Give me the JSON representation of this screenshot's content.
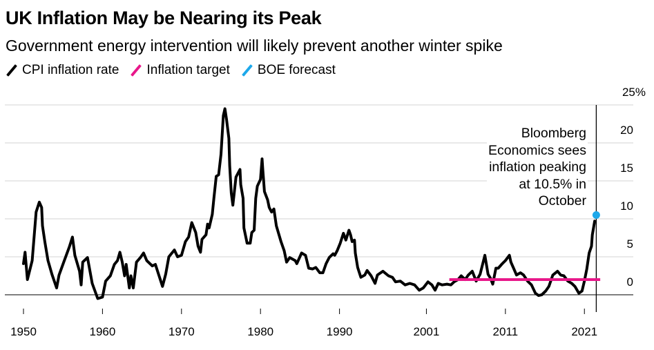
{
  "chart_data": {
    "type": "line",
    "title": "UK Inflation May be Nearing its Peak",
    "subtitle": "Government energy intervention will likely prevent another winter spike",
    "xlabel": "",
    "ylabel": "",
    "xlim": [
      1950,
      2023
    ],
    "ylim": [
      -2,
      25
    ],
    "grid": true,
    "legend_position": "top-left",
    "legend": [
      {
        "name": "CPI inflation rate",
        "color": "#000000"
      },
      {
        "name": "Inflation target",
        "color": "#e8178a"
      },
      {
        "name": "BOE forecast",
        "color": "#1da8ea"
      }
    ],
    "x_ticks": [
      {
        "value": 1950,
        "label": "1950"
      },
      {
        "value": 1960,
        "label": "1960"
      },
      {
        "value": 1970,
        "label": "1970"
      },
      {
        "value": 1980,
        "label": "1980"
      },
      {
        "value": 1990,
        "label": "1990"
      },
      {
        "value": 2001,
        "label": "2001"
      },
      {
        "value": 2011,
        "label": "2011"
      },
      {
        "value": 2021,
        "label": "2021"
      }
    ],
    "y_ticks": [
      {
        "value": 25,
        "label": "25%"
      },
      {
        "value": 20,
        "label": "20"
      },
      {
        "value": 15,
        "label": "15"
      },
      {
        "value": 10,
        "label": "10"
      },
      {
        "value": 5,
        "label": "5"
      },
      {
        "value": 0,
        "label": "0"
      }
    ],
    "series": [
      {
        "name": "CPI inflation rate",
        "color": "#000000",
        "points": [
          [
            1950.0,
            4.1
          ],
          [
            1950.2,
            5.6
          ],
          [
            1950.5,
            2.0
          ],
          [
            1951.1,
            4.5
          ],
          [
            1951.6,
            10.9
          ],
          [
            1952.0,
            12.2
          ],
          [
            1952.3,
            11.5
          ],
          [
            1952.4,
            9.1
          ],
          [
            1952.7,
            7.0
          ],
          [
            1953.1,
            4.5
          ],
          [
            1953.6,
            2.7
          ],
          [
            1954.2,
            0.9
          ],
          [
            1954.5,
            2.6
          ],
          [
            1955.1,
            4.3
          ],
          [
            1955.8,
            6.3
          ],
          [
            1956.2,
            7.6
          ],
          [
            1956.5,
            5.2
          ],
          [
            1957.1,
            3.1
          ],
          [
            1957.3,
            1.3
          ],
          [
            1957.5,
            4.3
          ],
          [
            1958.1,
            4.9
          ],
          [
            1958.7,
            1.5
          ],
          [
            1959.4,
            -0.5
          ],
          [
            1960.0,
            -0.3
          ],
          [
            1960.4,
            1.8
          ],
          [
            1961.0,
            2.5
          ],
          [
            1961.5,
            4.0
          ],
          [
            1961.9,
            4.5
          ],
          [
            1962.2,
            5.6
          ],
          [
            1962.5,
            4.3
          ],
          [
            1962.8,
            2.5
          ],
          [
            1963.0,
            4.0
          ],
          [
            1963.4,
            0.9
          ],
          [
            1963.6,
            2.5
          ],
          [
            1963.9,
            0.9
          ],
          [
            1964.3,
            4.3
          ],
          [
            1964.8,
            4.9
          ],
          [
            1965.2,
            5.5
          ],
          [
            1965.6,
            4.5
          ],
          [
            1966.3,
            3.8
          ],
          [
            1966.7,
            4.0
          ],
          [
            1967.1,
            2.7
          ],
          [
            1967.6,
            1.1
          ],
          [
            1968.0,
            2.7
          ],
          [
            1968.4,
            5.0
          ],
          [
            1969.1,
            5.9
          ],
          [
            1969.5,
            5.0
          ],
          [
            1970.0,
            5.2
          ],
          [
            1970.5,
            7.0
          ],
          [
            1970.9,
            7.6
          ],
          [
            1971.3,
            9.5
          ],
          [
            1971.8,
            8.2
          ],
          [
            1972.1,
            6.4
          ],
          [
            1972.4,
            5.6
          ],
          [
            1972.6,
            7.3
          ],
          [
            1973.1,
            7.9
          ],
          [
            1973.3,
            9.3
          ],
          [
            1973.5,
            8.8
          ],
          [
            1973.9,
            10.6
          ],
          [
            1974.1,
            12.7
          ],
          [
            1974.4,
            15.6
          ],
          [
            1974.7,
            15.8
          ],
          [
            1975.0,
            18.5
          ],
          [
            1975.3,
            23.6
          ],
          [
            1975.5,
            24.5
          ],
          [
            1975.7,
            23.1
          ],
          [
            1976.0,
            20.6
          ],
          [
            1976.1,
            17.0
          ],
          [
            1976.3,
            13.4
          ],
          [
            1976.5,
            11.8
          ],
          [
            1976.7,
            13.6
          ],
          [
            1976.9,
            15.5
          ],
          [
            1977.4,
            16.5
          ],
          [
            1977.5,
            14.5
          ],
          [
            1977.8,
            12.7
          ],
          [
            1977.9,
            8.8
          ],
          [
            1978.3,
            6.8
          ],
          [
            1978.7,
            6.8
          ],
          [
            1978.9,
            8.2
          ],
          [
            1979.2,
            8.5
          ],
          [
            1979.4,
            12.7
          ],
          [
            1979.6,
            14.3
          ],
          [
            1980.0,
            15.2
          ],
          [
            1980.2,
            17.9
          ],
          [
            1980.3,
            16.4
          ],
          [
            1980.5,
            13.6
          ],
          [
            1980.9,
            12.5
          ],
          [
            1981.1,
            11.5
          ],
          [
            1981.4,
            10.9
          ],
          [
            1981.7,
            11.3
          ],
          [
            1982.0,
            9.1
          ],
          [
            1982.6,
            7.0
          ],
          [
            1983.0,
            5.8
          ],
          [
            1983.3,
            4.3
          ],
          [
            1983.7,
            4.9
          ],
          [
            1984.4,
            4.5
          ],
          [
            1984.6,
            4.1
          ],
          [
            1985.2,
            5.5
          ],
          [
            1985.7,
            5.2
          ],
          [
            1986.1,
            3.5
          ],
          [
            1986.6,
            3.4
          ],
          [
            1987.0,
            3.6
          ],
          [
            1987.5,
            2.9
          ],
          [
            1987.9,
            2.9
          ],
          [
            1988.3,
            4.1
          ],
          [
            1988.7,
            4.9
          ],
          [
            1989.2,
            5.4
          ],
          [
            1989.4,
            5.2
          ],
          [
            1989.7,
            5.8
          ],
          [
            1990.1,
            6.8
          ],
          [
            1990.5,
            8.1
          ],
          [
            1990.8,
            7.2
          ],
          [
            1991.2,
            8.5
          ],
          [
            1991.4,
            7.9
          ],
          [
            1991.6,
            7.0
          ],
          [
            1991.9,
            7.2
          ],
          [
            1992.0,
            5.5
          ],
          [
            1992.3,
            3.6
          ],
          [
            1992.7,
            2.3
          ],
          [
            1993.2,
            2.6
          ],
          [
            1993.5,
            3.2
          ],
          [
            1994.0,
            2.5
          ],
          [
            1994.5,
            1.5
          ],
          [
            1994.8,
            2.6
          ],
          [
            1995.5,
            3.1
          ],
          [
            1996.2,
            2.5
          ],
          [
            1996.7,
            2.3
          ],
          [
            1997.1,
            1.7
          ],
          [
            1997.7,
            1.8
          ],
          [
            1998.3,
            1.3
          ],
          [
            1998.9,
            1.5
          ],
          [
            1999.5,
            1.3
          ],
          [
            2000.1,
            0.6
          ],
          [
            2000.6,
            0.9
          ],
          [
            2001.2,
            1.7
          ],
          [
            2001.7,
            1.3
          ],
          [
            2002.1,
            0.6
          ],
          [
            2002.5,
            1.5
          ],
          [
            2003.0,
            1.3
          ],
          [
            2003.6,
            1.4
          ],
          [
            2004.1,
            1.3
          ],
          [
            2004.5,
            1.7
          ],
          [
            2005.0,
            2.0
          ],
          [
            2005.4,
            2.5
          ],
          [
            2005.9,
            2.0
          ],
          [
            2006.3,
            2.6
          ],
          [
            2006.8,
            3.1
          ],
          [
            2007.3,
            1.8
          ],
          [
            2007.8,
            2.7
          ],
          [
            2008.4,
            5.2
          ],
          [
            2008.8,
            2.7
          ],
          [
            2009.1,
            2.2
          ],
          [
            2009.4,
            1.4
          ],
          [
            2009.8,
            3.5
          ],
          [
            2010.1,
            3.5
          ],
          [
            2010.6,
            4.1
          ],
          [
            2011.0,
            4.5
          ],
          [
            2011.5,
            5.2
          ],
          [
            2011.7,
            4.3
          ],
          [
            2012.2,
            3.1
          ],
          [
            2012.4,
            2.6
          ],
          [
            2012.9,
            2.9
          ],
          [
            2013.3,
            2.6
          ],
          [
            2013.8,
            1.8
          ],
          [
            2014.3,
            1.3
          ],
          [
            2014.8,
            0.2
          ],
          [
            2015.2,
            -0.1
          ],
          [
            2015.6,
            0.0
          ],
          [
            2016.1,
            0.5
          ],
          [
            2016.5,
            1.1
          ],
          [
            2017.0,
            2.6
          ],
          [
            2017.6,
            3.1
          ],
          [
            2018.0,
            2.6
          ],
          [
            2018.4,
            2.5
          ],
          [
            2018.9,
            1.8
          ],
          [
            2019.4,
            1.5
          ],
          [
            2019.8,
            1.1
          ],
          [
            2020.3,
            0.2
          ],
          [
            2020.7,
            0.5
          ],
          [
            2021.0,
            1.8
          ],
          [
            2021.3,
            3.4
          ],
          [
            2021.6,
            5.5
          ],
          [
            2021.9,
            6.4
          ],
          [
            2022.0,
            7.9
          ],
          [
            2022.3,
            9.7
          ]
        ]
      },
      {
        "name": "Inflation target",
        "color": "#e8178a",
        "points": [
          [
            2003.9,
            2.0
          ],
          [
            2023.0,
            2.0
          ]
        ]
      },
      {
        "name": "BOE forecast",
        "color": "#1da8ea",
        "points": [
          [
            2022.5,
            10.5
          ]
        ]
      }
    ],
    "reference_line": {
      "x": 2022.5
    },
    "annotations": [
      {
        "text_lines": [
          "Bloomberg",
          "Economics sees",
          "inflation peaking",
          "at 10.5% in",
          "October"
        ],
        "anchor": "right-of-plot-top"
      }
    ]
  }
}
